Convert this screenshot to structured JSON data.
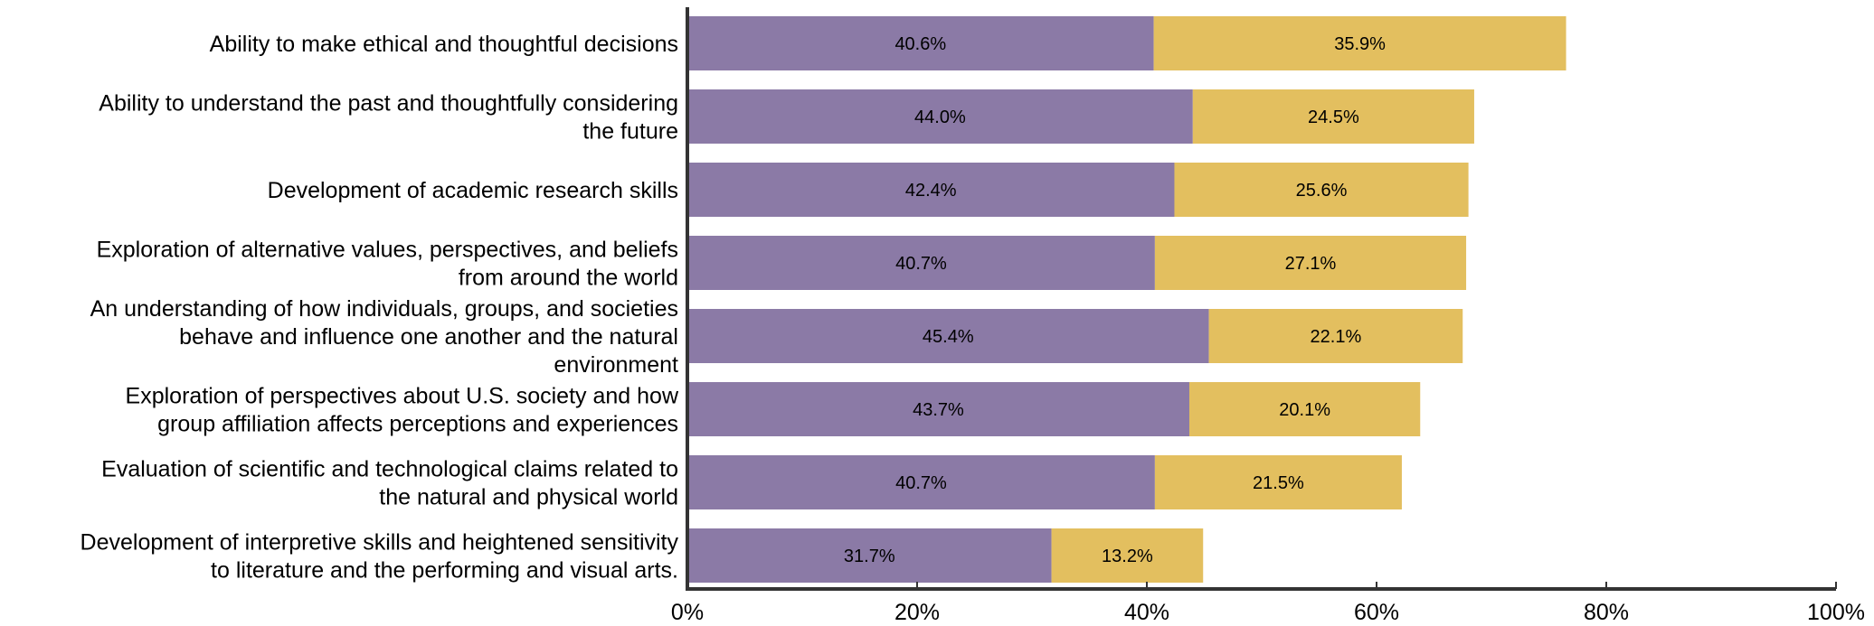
{
  "chart_data": {
    "type": "bar",
    "orientation": "horizontal",
    "stacked": true,
    "categories": [
      [
        "Ability to make ethical and thoughtful decisions"
      ],
      [
        "Ability to understand the past and thoughtfully considering",
        "the future"
      ],
      [
        "Development of academic research skills"
      ],
      [
        "Exploration of alternative values, perspectives, and beliefs",
        "from around the world"
      ],
      [
        "An understanding of how individuals, groups, and societies",
        "behave and influence one another and the natural",
        "environment"
      ],
      [
        "Exploration of perspectives about U.S. society and how",
        "group affiliation affects perceptions and experiences"
      ],
      [
        "Evaluation of scientific and technological claims related to",
        "the natural and physical world"
      ],
      [
        "Development of interpretive skills and heightened sensitivity",
        "to literature and the performing and visual arts."
      ]
    ],
    "series": [
      {
        "color": "#8B7AA6",
        "values": [
          40.6,
          44.0,
          42.4,
          40.7,
          45.4,
          43.7,
          40.7,
          31.7
        ],
        "labels": [
          "40.6%",
          "44.0%",
          "42.4%",
          "40.7%",
          "45.4%",
          "43.7%",
          "40.7%",
          "31.7%"
        ]
      },
      {
        "color": "#E3BF5F",
        "values": [
          35.9,
          24.5,
          25.6,
          27.1,
          22.1,
          20.1,
          21.5,
          13.2
        ],
        "labels": [
          "35.9%",
          "24.5%",
          "25.6%",
          "27.1%",
          "22.1%",
          "20.1%",
          "21.5%",
          "13.2%"
        ]
      }
    ],
    "xlim": [
      0,
      100
    ],
    "x_ticks": [
      0,
      20,
      40,
      60,
      80,
      100
    ],
    "x_tick_labels": [
      "0%",
      "20%",
      "40%",
      "60%",
      "80%",
      "100%"
    ],
    "grid": false,
    "legend": "none",
    "axis_color": "#333333"
  }
}
